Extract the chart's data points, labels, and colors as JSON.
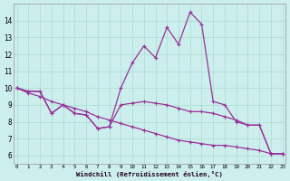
{
  "xlabel": "Windchill (Refroidissement éolien,°C)",
  "background_color": "#cceeed",
  "grid_color": "#aaddcc",
  "line_color": "#993399",
  "line1_x": [
    0,
    1,
    2,
    3,
    4,
    5,
    6,
    7,
    8,
    9,
    10,
    11,
    12,
    13,
    14,
    15,
    16,
    17,
    18,
    19,
    20,
    21,
    22,
    23
  ],
  "line1_y": [
    10.0,
    9.8,
    9.8,
    8.5,
    9.0,
    8.5,
    8.4,
    7.6,
    7.7,
    10.0,
    11.5,
    12.5,
    11.8,
    13.6,
    12.6,
    14.5,
    13.8,
    9.2,
    9.0,
    8.0,
    7.8,
    7.8,
    6.1,
    6.1
  ],
  "line2_x": [
    0,
    1,
    2,
    3,
    4,
    5,
    6,
    7,
    8,
    9,
    10,
    11,
    12,
    13,
    14,
    15,
    16,
    17,
    18,
    19,
    20,
    21,
    22,
    23
  ],
  "line2_y": [
    10.0,
    9.8,
    9.8,
    8.5,
    9.0,
    8.5,
    8.4,
    7.6,
    7.7,
    9.0,
    9.1,
    9.2,
    9.1,
    9.0,
    8.8,
    8.6,
    8.6,
    8.5,
    8.3,
    8.1,
    7.8,
    7.8,
    6.1,
    6.1
  ],
  "line3_x": [
    0,
    1,
    2,
    3,
    4,
    5,
    6,
    7,
    8,
    9,
    10,
    11,
    12,
    13,
    14,
    15,
    16,
    17,
    18,
    19,
    20,
    21,
    22,
    23
  ],
  "line3_y": [
    10.0,
    9.7,
    9.5,
    9.2,
    9.0,
    8.8,
    8.6,
    8.3,
    8.1,
    7.9,
    7.7,
    7.5,
    7.3,
    7.1,
    6.9,
    6.8,
    6.7,
    6.6,
    6.6,
    6.5,
    6.4,
    6.3,
    6.1,
    6.1
  ],
  "yticks": [
    6,
    7,
    8,
    9,
    10,
    11,
    12,
    13,
    14
  ],
  "xticks": [
    0,
    1,
    2,
    3,
    4,
    5,
    6,
    7,
    8,
    9,
    10,
    11,
    12,
    13,
    14,
    15,
    16,
    17,
    18,
    19,
    20,
    21,
    22,
    23
  ],
  "ylim_min": 5.5,
  "ylim_max": 15.0,
  "xlim_min": -0.3,
  "xlim_max": 23.3
}
